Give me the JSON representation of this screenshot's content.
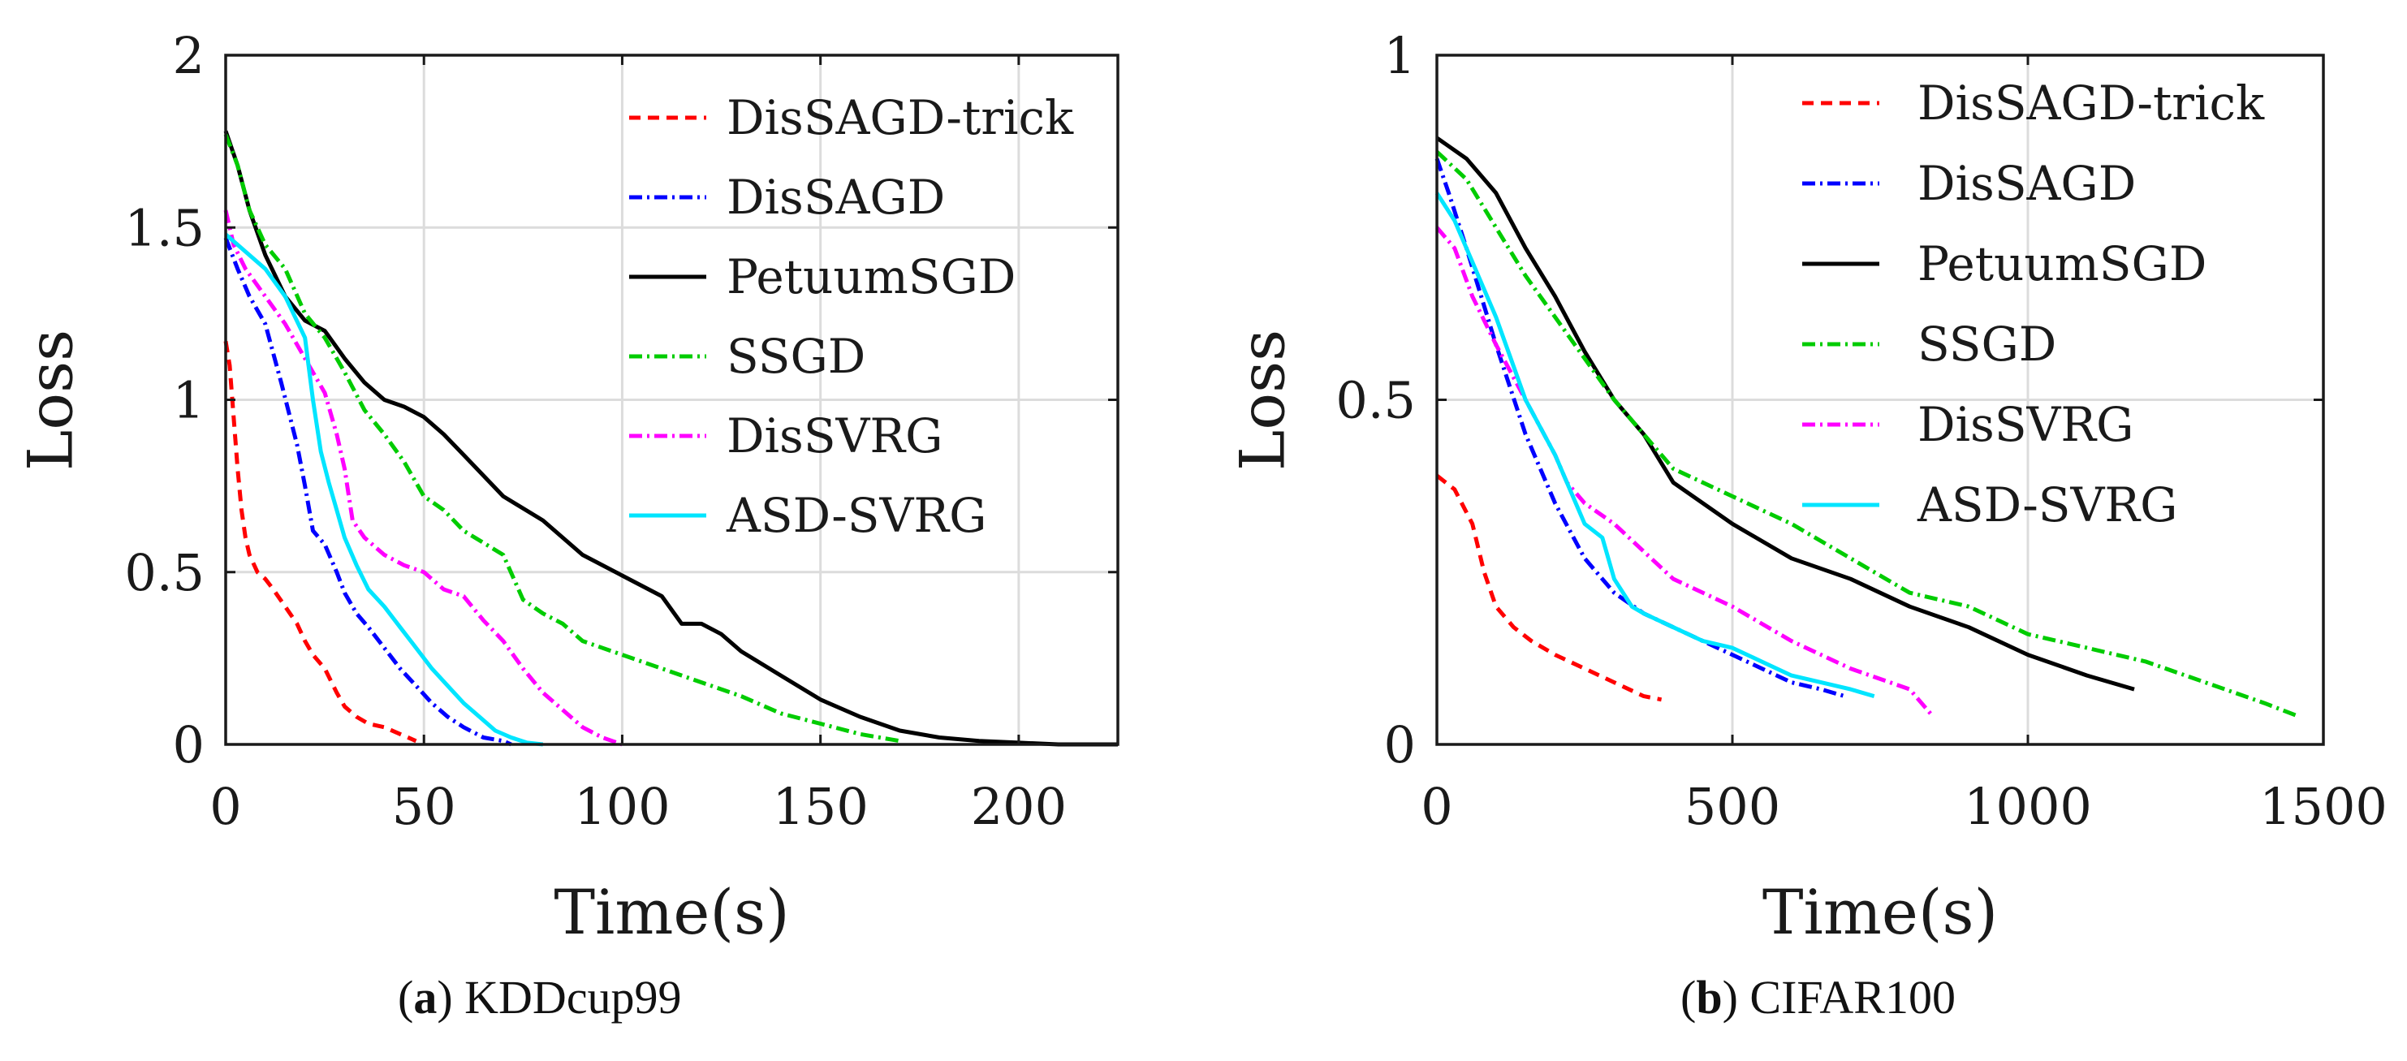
{
  "chart_data": [
    {
      "type": "line",
      "panel_label": "a",
      "caption": "KDDcup99",
      "xlabel": "Time(s)",
      "ylabel": "Loss",
      "xlim": [
        0,
        225
      ],
      "ylim": [
        0,
        2
      ],
      "xticks": [
        0,
        50,
        100,
        150,
        200
      ],
      "yticks": [
        0,
        0.5,
        1,
        1.5,
        2
      ],
      "ytick_labels": [
        "0",
        "0.5",
        "1",
        "1.5",
        "2"
      ],
      "grid": true,
      "legend_position": "top-right",
      "series": [
        {
          "name": "DisSAGD-trick",
          "color": "#ff0000",
          "dash": "dashed",
          "x": [
            0,
            1,
            2,
            3,
            4,
            5,
            6,
            8,
            10,
            12,
            15,
            18,
            20,
            22,
            25,
            28,
            30,
            33,
            36,
            40,
            44,
            48
          ],
          "y": [
            1.17,
            1.1,
            0.95,
            0.8,
            0.68,
            0.6,
            0.55,
            0.5,
            0.48,
            0.45,
            0.4,
            0.35,
            0.3,
            0.26,
            0.22,
            0.15,
            0.11,
            0.08,
            0.06,
            0.05,
            0.03,
            0.01
          ]
        },
        {
          "name": "DisSAGD",
          "color": "#0000ff",
          "dash": "dashdot",
          "x": [
            0,
            3,
            6,
            10,
            14,
            18,
            20,
            22,
            25,
            28,
            30,
            33,
            36,
            40,
            44,
            48,
            52,
            56,
            60,
            65,
            70,
            72
          ],
          "y": [
            1.47,
            1.38,
            1.3,
            1.22,
            1.05,
            0.87,
            0.75,
            0.62,
            0.58,
            0.5,
            0.44,
            0.38,
            0.34,
            0.28,
            0.22,
            0.17,
            0.12,
            0.08,
            0.05,
            0.02,
            0.01,
            0.0
          ]
        },
        {
          "name": "PetuumSGD",
          "color": "#000000",
          "dash": "solid",
          "x": [
            0,
            3,
            6,
            10,
            15,
            20,
            25,
            30,
            35,
            40,
            45,
            50,
            55,
            60,
            70,
            80,
            90,
            100,
            110,
            115,
            120,
            125,
            130,
            140,
            150,
            160,
            170,
            180,
            190,
            200,
            210,
            220,
            225
          ],
          "y": [
            1.78,
            1.68,
            1.55,
            1.42,
            1.3,
            1.23,
            1.2,
            1.12,
            1.05,
            1.0,
            0.98,
            0.95,
            0.9,
            0.84,
            0.72,
            0.65,
            0.55,
            0.49,
            0.43,
            0.35,
            0.35,
            0.32,
            0.27,
            0.2,
            0.13,
            0.08,
            0.04,
            0.02,
            0.01,
            0.005,
            0.0,
            0.0,
            0.0
          ]
        },
        {
          "name": "SSGD",
          "color": "#00cc00",
          "dash": "dashdot",
          "x": [
            0,
            3,
            6,
            10,
            15,
            20,
            25,
            30,
            35,
            40,
            45,
            50,
            55,
            60,
            70,
            75,
            80,
            85,
            90,
            100,
            110,
            120,
            130,
            140,
            150,
            160,
            170
          ],
          "y": [
            1.77,
            1.68,
            1.55,
            1.45,
            1.38,
            1.25,
            1.18,
            1.08,
            0.97,
            0.9,
            0.82,
            0.72,
            0.68,
            0.62,
            0.55,
            0.42,
            0.38,
            0.35,
            0.3,
            0.26,
            0.22,
            0.18,
            0.14,
            0.09,
            0.06,
            0.03,
            0.01
          ]
        },
        {
          "name": "DisSVRG",
          "color": "#ff00ff",
          "dash": "dashdot",
          "x": [
            0,
            2,
            5,
            10,
            15,
            20,
            25,
            28,
            30,
            32,
            35,
            40,
            45,
            50,
            55,
            60,
            65,
            70,
            75,
            80,
            85,
            90,
            95,
            100
          ],
          "y": [
            1.55,
            1.45,
            1.38,
            1.3,
            1.22,
            1.12,
            1.02,
            0.9,
            0.8,
            0.65,
            0.6,
            0.55,
            0.52,
            0.5,
            0.45,
            0.43,
            0.36,
            0.3,
            0.22,
            0.15,
            0.1,
            0.05,
            0.02,
            0.0
          ]
        },
        {
          "name": "ASD-SVRG",
          "color": "#00e5ff",
          "dash": "solid",
          "x": [
            0,
            3,
            6,
            10,
            15,
            20,
            22,
            24,
            26,
            28,
            30,
            33,
            36,
            40,
            44,
            48,
            52,
            56,
            60,
            64,
            68,
            72,
            76,
            80
          ],
          "y": [
            1.48,
            1.45,
            1.42,
            1.38,
            1.3,
            1.18,
            1.0,
            0.85,
            0.76,
            0.68,
            0.6,
            0.52,
            0.45,
            0.4,
            0.34,
            0.28,
            0.22,
            0.17,
            0.12,
            0.08,
            0.04,
            0.02,
            0.005,
            0.0
          ]
        }
      ]
    },
    {
      "type": "line",
      "panel_label": "b",
      "caption": "CIFAR100",
      "xlabel": "Time(s)",
      "ylabel": "Loss",
      "xlim": [
        0,
        1500
      ],
      "ylim": [
        0,
        1
      ],
      "xticks": [
        0,
        500,
        1000,
        1500
      ],
      "yticks": [
        0,
        0.5,
        1
      ],
      "ytick_labels": [
        "0",
        "0.5",
        "1"
      ],
      "grid": true,
      "legend_position": "top-right",
      "series": [
        {
          "name": "DisSAGD-trick",
          "color": "#ff0000",
          "dash": "dashed",
          "x": [
            0,
            30,
            60,
            80,
            100,
            130,
            160,
            200,
            250,
            300,
            350,
            380
          ],
          "y": [
            0.39,
            0.37,
            0.32,
            0.25,
            0.2,
            0.17,
            0.15,
            0.13,
            0.11,
            0.09,
            0.07,
            0.065
          ]
        },
        {
          "name": "DisSAGD",
          "color": "#0000ff",
          "dash": "dashdot",
          "x": [
            0,
            20,
            50,
            100,
            150,
            200,
            250,
            300,
            350,
            400,
            450,
            500,
            550,
            600,
            650,
            690
          ],
          "y": [
            0.85,
            0.8,
            0.72,
            0.58,
            0.45,
            0.35,
            0.27,
            0.22,
            0.19,
            0.17,
            0.15,
            0.13,
            0.11,
            0.09,
            0.08,
            0.07
          ]
        },
        {
          "name": "PetuumSGD",
          "color": "#000000",
          "dash": "solid",
          "x": [
            0,
            50,
            100,
            150,
            200,
            250,
            300,
            350,
            400,
            500,
            600,
            700,
            800,
            900,
            1000,
            1100,
            1180
          ],
          "y": [
            0.88,
            0.85,
            0.8,
            0.72,
            0.65,
            0.57,
            0.5,
            0.45,
            0.38,
            0.32,
            0.27,
            0.24,
            0.2,
            0.17,
            0.13,
            0.1,
            0.08
          ]
        },
        {
          "name": "SSGD",
          "color": "#00cc00",
          "dash": "dashdot",
          "x": [
            0,
            50,
            100,
            150,
            200,
            300,
            400,
            500,
            600,
            700,
            800,
            900,
            1000,
            1100,
            1200,
            1300,
            1400,
            1460
          ],
          "y": [
            0.86,
            0.82,
            0.75,
            0.68,
            0.62,
            0.5,
            0.4,
            0.36,
            0.32,
            0.27,
            0.22,
            0.2,
            0.16,
            0.14,
            0.12,
            0.09,
            0.06,
            0.04
          ]
        },
        {
          "name": "DisSVRG",
          "color": "#ff00ff",
          "dash": "dashdot",
          "x": [
            0,
            30,
            60,
            100,
            150,
            200,
            220,
            250,
            300,
            350,
            400,
            500,
            600,
            700,
            800,
            840
          ],
          "y": [
            0.75,
            0.72,
            0.65,
            0.58,
            0.5,
            0.42,
            0.38,
            0.35,
            0.32,
            0.28,
            0.24,
            0.2,
            0.15,
            0.11,
            0.08,
            0.04
          ]
        },
        {
          "name": "ASD-SVRG",
          "color": "#00e5ff",
          "dash": "solid",
          "x": [
            0,
            30,
            60,
            100,
            150,
            200,
            250,
            280,
            300,
            330,
            350,
            400,
            450,
            500,
            550,
            600,
            650,
            700,
            740
          ],
          "y": [
            0.8,
            0.76,
            0.7,
            0.62,
            0.5,
            0.42,
            0.32,
            0.3,
            0.24,
            0.2,
            0.19,
            0.17,
            0.15,
            0.14,
            0.12,
            0.1,
            0.09,
            0.08,
            0.07
          ]
        }
      ]
    }
  ]
}
